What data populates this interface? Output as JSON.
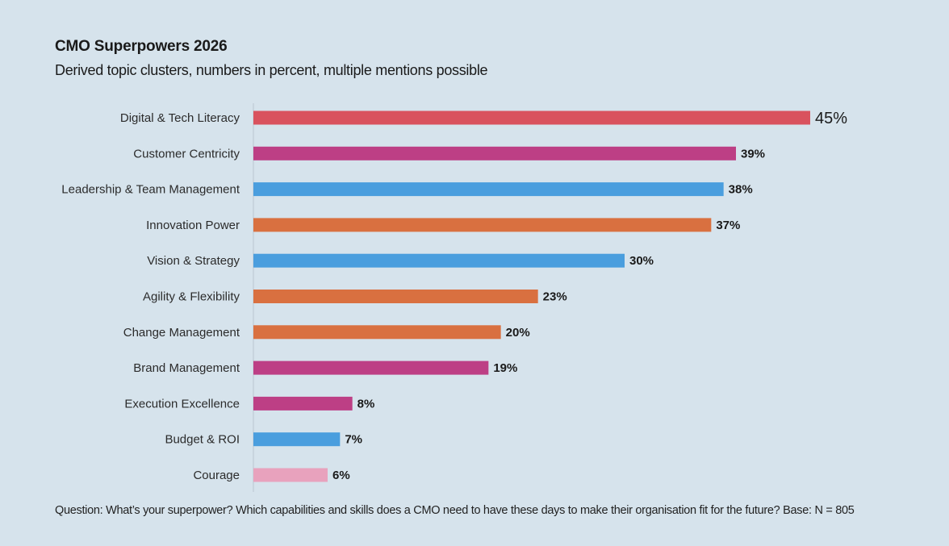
{
  "header": {
    "title": "CMO Superpowers 2026",
    "subtitle": "Derived topic clusters, numbers in percent, multiple mentions possible"
  },
  "footnote": "Question: What’s your superpower? Which capabilities and skills does a CMO need to have these days to make their organisation fit for the future? Base: N = 805",
  "colors": {
    "background": "#d6e3ec",
    "red": "#d9525e",
    "magenta": "#bd3f85",
    "blue": "#4a9ede",
    "orange": "#d97040",
    "pink": "#e8a2bd",
    "axis": "#b9c6d0"
  },
  "chart_data": {
    "type": "bar",
    "orientation": "horizontal",
    "title": "CMO Superpowers 2026",
    "subtitle": "Derived topic clusters, numbers in percent, multiple mentions possible",
    "xlabel": "",
    "ylabel": "",
    "xlim": [
      0,
      45
    ],
    "unit": "%",
    "categories": [
      "Digital & Tech Literacy",
      "Customer Centricity",
      "Leadership & Team Management",
      "Innovation Power",
      "Vision & Strategy",
      "Agility & Flexibility",
      "Change Management",
      "Brand Management",
      "Execution Excellence",
      "Budget & ROI",
      "Courage"
    ],
    "values": [
      45,
      39,
      38,
      37,
      30,
      23,
      20,
      19,
      8,
      7,
      6
    ],
    "value_labels": [
      "45%",
      "39%",
      "38%",
      "37%",
      "30%",
      "23%",
      "20%",
      "19%",
      "8%",
      "7%",
      "6%"
    ],
    "bar_colors": [
      "red",
      "magenta",
      "blue",
      "orange",
      "blue",
      "orange",
      "orange",
      "magenta",
      "magenta",
      "blue",
      "pink"
    ]
  }
}
